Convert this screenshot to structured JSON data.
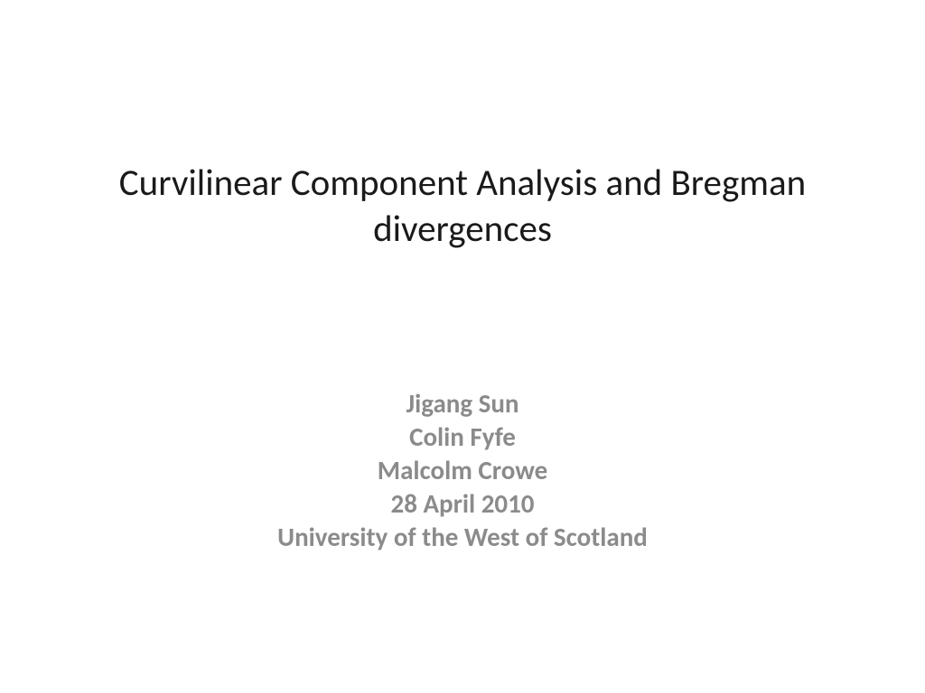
{
  "slide": {
    "title": "Curvilinear Component Analysis and Bregman divergences",
    "authors": [
      "Jigang Sun",
      "Colin Fyfe",
      "Malcolm Crowe",
      "28 April 2010",
      "University of the West of Scotland"
    ]
  },
  "style": {
    "background_color": "#ffffff",
    "title_color": "#1a1a1a",
    "title_fontsize": 41,
    "title_fontweight": 400,
    "authors_color": "#8b8b8b",
    "authors_fontsize": 29,
    "authors_fontweight": 700,
    "font_family": "Calibri"
  }
}
